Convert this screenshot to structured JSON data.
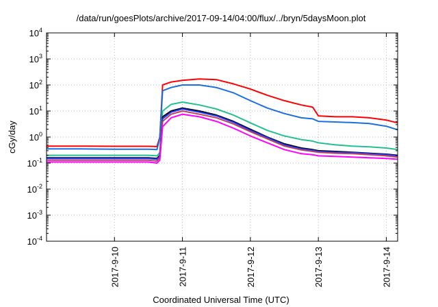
{
  "chart_data": {
    "type": "line",
    "title": "/data/run/goesPlots/archive/2017-09-14/04:00/flux/../bryn/5daysMoon.plot",
    "xlabel": "Coordinated Universal Time (UTC)",
    "ylabel": "cGy/day",
    "yscale": "log",
    "ylim": [
      0.0001,
      10000
    ],
    "y_ticks": [
      {
        "base": "10",
        "exp": "-4"
      },
      {
        "base": "10",
        "exp": "-3"
      },
      {
        "base": "10",
        "exp": "-2"
      },
      {
        "base": "10",
        "exp": "-1"
      },
      {
        "base": "10",
        "exp": "0"
      },
      {
        "base": "10",
        "exp": "1"
      },
      {
        "base": "10",
        "exp": "2"
      },
      {
        "base": "10",
        "exp": "3"
      },
      {
        "base": "10",
        "exp": "4"
      }
    ],
    "xlim": [
      "2017-09-09T00:00",
      "2017-09-14T04:00"
    ],
    "x_ticks": [
      "2017-9-10",
      "2017-9-11",
      "2017-9-12",
      "2017-9-13",
      "2017-9-14"
    ],
    "grid": true,
    "legend": "none",
    "x": [
      "2017-09-09T00:00",
      "2017-09-09T12:00",
      "2017-09-10T00:00",
      "2017-09-10T12:00",
      "2017-09-10T15:00",
      "2017-09-10T16:00",
      "2017-09-10T17:00",
      "2017-09-10T20:00",
      "2017-09-11T00:00",
      "2017-09-11T06:00",
      "2017-09-11T12:00",
      "2017-09-11T18:00",
      "2017-09-12T00:00",
      "2017-09-12T06:00",
      "2017-09-12T12:00",
      "2017-09-12T18:00",
      "2017-09-12T22:00",
      "2017-09-13T00:00",
      "2017-09-13T06:00",
      "2017-09-13T12:00",
      "2017-09-13T18:00",
      "2017-09-14T00:00",
      "2017-09-14T04:00"
    ],
    "series": [
      {
        "color": "#ff0000",
        "values": [
          0.45,
          0.45,
          0.44,
          0.44,
          0.43,
          1.0,
          100,
          130,
          150,
          170,
          160,
          110,
          70,
          40,
          25,
          17,
          14,
          6.5,
          6.0,
          6.0,
          5.5,
          4.5,
          3.5
        ]
      },
      {
        "color": "#1a6fe0",
        "values": [
          0.35,
          0.35,
          0.34,
          0.34,
          0.33,
          0.9,
          60,
          80,
          100,
          100,
          80,
          50,
          25,
          13,
          8,
          5.5,
          5.0,
          4.0,
          3.8,
          3.6,
          3.3,
          2.6,
          1.9
        ]
      },
      {
        "color": "#20c090",
        "values": [
          0.2,
          0.2,
          0.2,
          0.2,
          0.19,
          0.25,
          10,
          18,
          22,
          17,
          12,
          7,
          3.5,
          1.8,
          1.1,
          0.8,
          0.7,
          0.6,
          0.5,
          0.45,
          0.42,
          0.38,
          0.33
        ]
      },
      {
        "color": "#000000",
        "values": [
          0.16,
          0.16,
          0.16,
          0.16,
          0.15,
          0.2,
          6,
          10,
          13,
          10,
          7,
          4,
          2.0,
          1.0,
          0.55,
          0.38,
          0.33,
          0.3,
          0.28,
          0.26,
          0.24,
          0.22,
          0.2
        ]
      },
      {
        "color": "#1e3cff",
        "values": [
          0.15,
          0.15,
          0.15,
          0.15,
          0.14,
          0.18,
          5,
          9,
          12,
          9,
          6.5,
          3.7,
          1.8,
          0.95,
          0.5,
          0.35,
          0.31,
          0.28,
          0.26,
          0.25,
          0.23,
          0.21,
          0.19
        ]
      },
      {
        "color": "#c04060",
        "values": [
          0.13,
          0.13,
          0.13,
          0.13,
          0.12,
          0.16,
          4,
          7.5,
          10,
          7.5,
          5.5,
          3.2,
          1.6,
          0.85,
          0.45,
          0.32,
          0.28,
          0.26,
          0.24,
          0.23,
          0.21,
          0.19,
          0.17
        ]
      },
      {
        "color": "#ff00ff",
        "values": [
          0.11,
          0.11,
          0.11,
          0.11,
          0.1,
          0.13,
          2.5,
          5.5,
          7.5,
          6,
          4,
          2.2,
          1.1,
          0.6,
          0.33,
          0.23,
          0.21,
          0.19,
          0.18,
          0.17,
          0.16,
          0.15,
          0.14
        ]
      }
    ]
  }
}
